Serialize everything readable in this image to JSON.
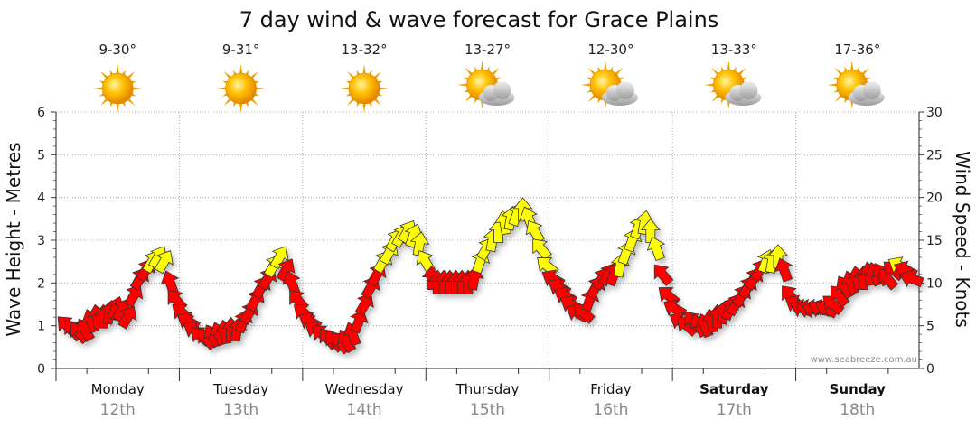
{
  "chart_data": {
    "type": "line",
    "title": "7 day wind & wave forecast for Grace Plains",
    "y_left": {
      "label": "Wave Height - Metres",
      "range": [
        0,
        6
      ],
      "ticks": [
        "0",
        "1",
        "2",
        "3",
        "4",
        "5",
        "6"
      ]
    },
    "y_right": {
      "label": "Wind Speed - Knots",
      "range": [
        0,
        30
      ],
      "ticks": [
        "0",
        "5",
        "10",
        "15",
        "20",
        "25",
        "30"
      ]
    },
    "days": [
      {
        "name": "Monday",
        "date": "12th",
        "temp": "9-30°",
        "icon": "sun-icon",
        "bold": false
      },
      {
        "name": "Tuesday",
        "date": "13th",
        "temp": "9-31°",
        "icon": "sun-icon",
        "bold": false
      },
      {
        "name": "Wednesday",
        "date": "14th",
        "temp": "13-32°",
        "icon": "sun-icon",
        "bold": false
      },
      {
        "name": "Thursday",
        "date": "15th",
        "temp": "13-27°",
        "icon": "partly-cloudy-icon",
        "bold": false
      },
      {
        "name": "Friday",
        "date": "16th",
        "temp": "12-30°",
        "icon": "partly-cloudy-icon",
        "bold": false
      },
      {
        "name": "Saturday",
        "date": "17th",
        "temp": "13-33°",
        "icon": "partly-cloudy-icon",
        "bold": true
      },
      {
        "name": "Sunday",
        "date": "18th",
        "temp": "17-36°",
        "icon": "partly-cloudy-icon",
        "bold": true
      }
    ],
    "wind_knots": [
      5.0,
      4.5,
      4.2,
      4.5,
      5.5,
      6.0,
      6.0,
      6.5,
      7.0,
      6.8,
      6.0,
      8.5,
      10.5,
      11.5,
      12.5,
      13.0,
      12.5,
      10.0,
      8.0,
      6.5,
      5.5,
      4.5,
      3.8,
      3.5,
      3.8,
      4.0,
      4.2,
      4.5,
      4.5,
      5.5,
      6.5,
      8.0,
      9.5,
      10.5,
      12.0,
      13.0,
      11.5,
      10.0,
      8.0,
      6.5,
      5.5,
      4.5,
      4.0,
      3.5,
      3.2,
      3.0,
      3.2,
      4.0,
      5.5,
      7.5,
      9.5,
      11.0,
      12.5,
      13.5,
      15.0,
      15.5,
      16.0,
      15.5,
      14.5,
      12.5,
      10.5,
      10.0,
      10.0,
      10.0,
      10.0,
      10.0,
      10.0,
      10.5,
      12.5,
      14.0,
      15.0,
      16.0,
      17.0,
      17.5,
      18.0,
      18.5,
      17.5,
      16.0,
      14.0,
      12.0,
      10.5,
      9.5,
      8.5,
      7.5,
      6.5,
      6.5,
      8.0,
      9.5,
      10.5,
      11.0,
      11.0,
      12.0,
      13.5,
      15.0,
      16.5,
      17.0,
      16.0,
      14.0,
      11.0,
      8.5,
      7.0,
      5.5,
      5.0,
      5.5,
      5.0,
      5.0,
      5.5,
      6.0,
      6.5,
      7.0,
      7.5,
      8.5,
      9.5,
      10.5,
      11.5,
      12.5,
      12.5,
      13.0,
      11.5,
      8.5,
      7.5,
      7.0,
      7.0,
      7.0,
      7.0,
      7.0,
      7.5,
      8.5,
      9.5,
      10.0,
      10.5,
      10.5,
      11.0,
      11.0,
      11.0,
      10.5,
      11.5,
      12.0,
      11.5,
      10.5
    ],
    "wind_direction_deg": [
      315,
      320,
      320,
      330,
      340,
      350,
      0,
      10,
      20,
      30,
      30,
      30,
      30,
      30,
      30,
      30,
      30,
      340,
      320,
      310,
      300,
      300,
      310,
      320,
      330,
      340,
      350,
      0,
      10,
      20,
      30,
      30,
      30,
      30,
      30,
      30,
      30,
      340,
      320,
      310,
      300,
      300,
      310,
      320,
      320,
      320,
      330,
      340,
      20,
      30,
      30,
      30,
      30,
      30,
      30,
      30,
      30,
      20,
      10,
      330,
      0,
      0,
      0,
      0,
      0,
      0,
      0,
      10,
      20,
      30,
      10,
      0,
      350,
      10,
      20,
      0,
      340,
      330,
      320,
      310,
      300,
      300,
      300,
      300,
      300,
      310,
      20,
      30,
      30,
      30,
      20,
      10,
      20,
      20,
      20,
      10,
      0,
      340,
      320,
      310,
      300,
      300,
      310,
      320,
      330,
      340,
      350,
      0,
      10,
      20,
      30,
      30,
      30,
      30,
      30,
      20,
      10,
      0,
      340,
      320,
      300,
      290,
      280,
      280,
      290,
      300,
      310,
      320,
      330,
      340,
      350,
      0,
      350,
      340,
      330,
      320,
      310,
      300,
      295,
      290
    ],
    "colors": {
      "strong": "#ff0000",
      "moderate": "#ffff00",
      "outline": "#333333",
      "strong_threshold_knots": 12
    },
    "watermark": "www.seabreeze.com.au"
  }
}
